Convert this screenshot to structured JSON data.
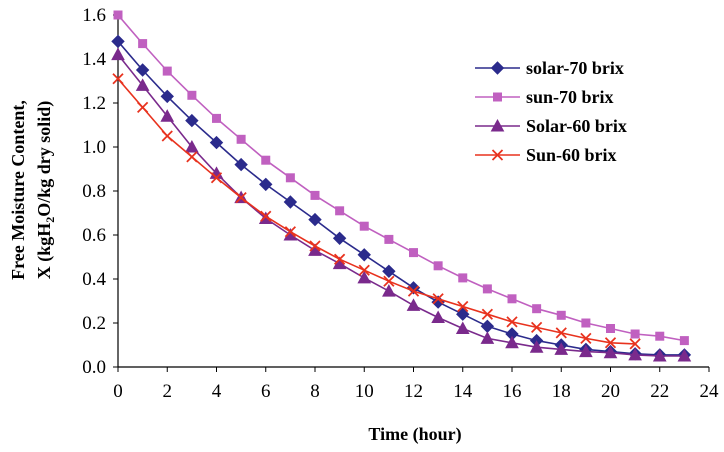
{
  "chart_data": {
    "type": "line",
    "title": "",
    "xlabel": "Time (hour)",
    "ylabel_lines": [
      "Free Moisture Content,",
      "X (kgH",
      "2",
      "O/kg dry solid)"
    ],
    "xlim": [
      0,
      24
    ],
    "ylim": [
      0,
      1.6
    ],
    "xticks": [
      "0",
      "2",
      "4",
      "6",
      "8",
      "10",
      "12",
      "14",
      "16",
      "18",
      "20",
      "22",
      "24"
    ],
    "yticks": [
      "0.0",
      "0.2",
      "0.4",
      "0.6",
      "0.8",
      "1.0",
      "1.2",
      "1.4",
      "1.6"
    ],
    "grid": false,
    "legend_position": "top-right",
    "series": [
      {
        "name": "solar-70 brix",
        "color": "#2b2b8c",
        "marker": "diamond",
        "x": [
          0,
          1,
          2,
          3,
          4,
          5,
          6,
          7,
          8,
          9,
          10,
          11,
          12,
          13,
          14,
          15,
          16,
          17,
          18,
          19,
          20,
          21,
          22,
          23
        ],
        "y": [
          1.48,
          1.35,
          1.23,
          1.12,
          1.02,
          0.92,
          0.83,
          0.75,
          0.67,
          0.585,
          0.51,
          0.435,
          0.36,
          0.295,
          0.24,
          0.185,
          0.15,
          0.12,
          0.1,
          0.08,
          0.07,
          0.06,
          0.055,
          0.055
        ]
      },
      {
        "name": "sun-70 brix",
        "color": "#c060c0",
        "marker": "square",
        "x": [
          0,
          1,
          2,
          3,
          4,
          5,
          6,
          7,
          8,
          9,
          10,
          11,
          12,
          13,
          14,
          15,
          16,
          17,
          18,
          19,
          20,
          21,
          22,
          23
        ],
        "y": [
          1.6,
          1.47,
          1.345,
          1.235,
          1.13,
          1.035,
          0.94,
          0.86,
          0.78,
          0.71,
          0.64,
          0.58,
          0.52,
          0.46,
          0.405,
          0.355,
          0.31,
          0.265,
          0.235,
          0.2,
          0.175,
          0.15,
          0.14,
          0.12
        ]
      },
      {
        "name": "Solar-60 brix",
        "color": "#7a2a8c",
        "marker": "triangle",
        "x": [
          0,
          1,
          2,
          3,
          4,
          5,
          6,
          7,
          8,
          9,
          10,
          11,
          12,
          13,
          14,
          15,
          16,
          17,
          18,
          19,
          20,
          21,
          22,
          23
        ],
        "y": [
          1.42,
          1.28,
          1.14,
          1.0,
          0.88,
          0.77,
          0.675,
          0.6,
          0.53,
          0.47,
          0.405,
          0.345,
          0.28,
          0.225,
          0.175,
          0.13,
          0.11,
          0.09,
          0.08,
          0.07,
          0.065,
          0.055,
          0.05,
          0.05
        ]
      },
      {
        "name": "Sun-60 brix",
        "color": "#e8321e",
        "marker": "x",
        "x": [
          0,
          1,
          2,
          3,
          4,
          5,
          6,
          7,
          8,
          9,
          10,
          11,
          12,
          13,
          14,
          15,
          16,
          17,
          18,
          19,
          20,
          21
        ],
        "y": [
          1.31,
          1.18,
          1.05,
          0.955,
          0.86,
          0.77,
          0.685,
          0.615,
          0.55,
          0.49,
          0.44,
          0.39,
          0.345,
          0.31,
          0.275,
          0.24,
          0.205,
          0.18,
          0.155,
          0.13,
          0.11,
          0.105
        ]
      }
    ]
  }
}
